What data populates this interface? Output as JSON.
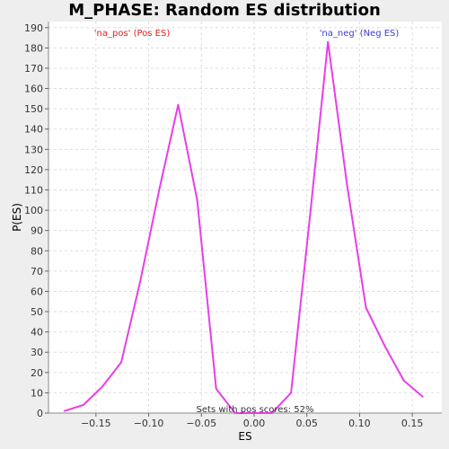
{
  "chart_data": {
    "type": "line",
    "title": "M_PHASE: Random ES distribution",
    "xlabel": "ES",
    "ylabel": "P(ES)",
    "xlim": [
      -0.195,
      0.178
    ],
    "ylim": [
      0,
      193
    ],
    "xticks": [
      -0.15,
      -0.1,
      -0.05,
      0.0,
      0.05,
      0.1,
      0.15
    ],
    "xtick_labels": [
      "−0.15",
      "−0.10",
      "−0.05",
      "0.00",
      "0.05",
      "0.10",
      "0.15"
    ],
    "yticks": [
      0,
      10,
      20,
      30,
      40,
      50,
      60,
      70,
      80,
      90,
      100,
      110,
      120,
      130,
      140,
      150,
      160,
      170,
      180,
      190
    ],
    "grid": true,
    "series": [
      {
        "color": "#e83ee8",
        "x": [
          -0.18,
          -0.162,
          -0.144,
          -0.126,
          -0.108,
          -0.09,
          -0.072,
          -0.054,
          -0.036,
          -0.018,
          0.0,
          0.017,
          0.035,
          0.053,
          0.07,
          0.088,
          0.106,
          0.124,
          0.142,
          0.16
        ],
        "y": [
          1,
          4,
          13,
          25,
          65,
          110,
          152,
          105,
          12,
          0,
          0,
          0,
          10,
          97,
          183,
          113,
          52,
          33,
          16,
          8
        ]
      }
    ],
    "annotations": {
      "pos_label": "'na_pos' (Pos ES)",
      "neg_label": "'na_neg' (Neg ES)",
      "footer": "Sets with pos scores: 52%"
    },
    "colors": {
      "pos_label": "#e0201e",
      "neg_label": "#3b3bd9",
      "line": "#e83ee8",
      "plot_bg": "#ffffff",
      "grid": "#dddddd"
    }
  }
}
